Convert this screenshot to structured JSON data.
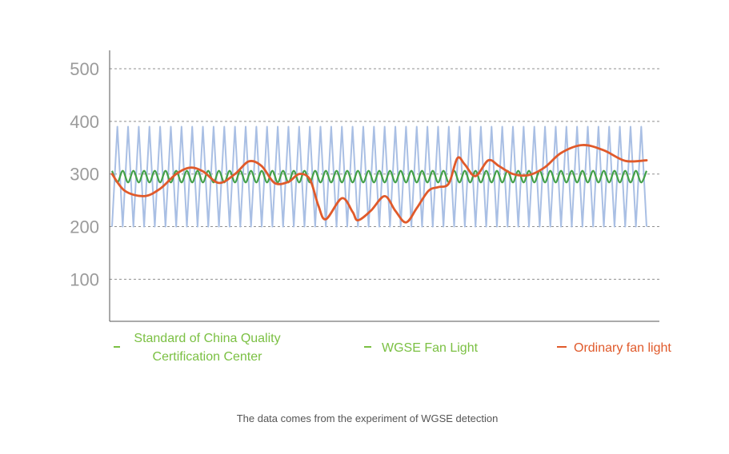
{
  "chart_data": {
    "type": "line",
    "xlabel": "",
    "ylabel": "",
    "ylim": [
      20,
      535
    ],
    "yticks": [
      100,
      200,
      300,
      400,
      500
    ],
    "grid": true,
    "legend_position": "bottom",
    "caption": "The data comes from the experiment of WGSE detection",
    "series": [
      {
        "name": "Standard of China Quality Certification Center",
        "legend_lines": [
          "Standard of China Quality",
          "Certification Center"
        ],
        "color": "#a9bfe4",
        "legend_color": "#7bc043",
        "points": [
          [
            0,
            200
          ],
          [
            0.5,
            390
          ],
          [
            1,
            200
          ],
          [
            1.5,
            390
          ],
          [
            2,
            200
          ],
          [
            2.5,
            390
          ],
          [
            3,
            200
          ],
          [
            3.5,
            390
          ],
          [
            4,
            200
          ],
          [
            4.5,
            390
          ],
          [
            5,
            200
          ],
          [
            5.5,
            390
          ],
          [
            6,
            200
          ],
          [
            6.5,
            390
          ],
          [
            7,
            200
          ],
          [
            7.5,
            390
          ],
          [
            8,
            200
          ],
          [
            8.5,
            390
          ],
          [
            9,
            200
          ],
          [
            9.5,
            390
          ],
          [
            10,
            200
          ],
          [
            10.5,
            390
          ],
          [
            11,
            200
          ],
          [
            11.5,
            390
          ],
          [
            12,
            200
          ],
          [
            12.5,
            390
          ],
          [
            13,
            200
          ],
          [
            13.5,
            390
          ],
          [
            14,
            200
          ],
          [
            14.5,
            390
          ],
          [
            15,
            200
          ],
          [
            15.5,
            390
          ],
          [
            16,
            200
          ],
          [
            16.5,
            390
          ],
          [
            17,
            200
          ],
          [
            17.5,
            390
          ],
          [
            18,
            200
          ],
          [
            18.5,
            390
          ],
          [
            19,
            200
          ],
          [
            19.5,
            390
          ],
          [
            20,
            200
          ],
          [
            20.5,
            390
          ],
          [
            21,
            200
          ],
          [
            21.5,
            390
          ],
          [
            22,
            200
          ],
          [
            22.5,
            390
          ],
          [
            23,
            200
          ],
          [
            23.5,
            390
          ],
          [
            24,
            200
          ],
          [
            24.5,
            390
          ],
          [
            25,
            200
          ],
          [
            25.5,
            390
          ],
          [
            26,
            200
          ],
          [
            26.5,
            390
          ],
          [
            27,
            200
          ],
          [
            27.5,
            390
          ],
          [
            28,
            200
          ],
          [
            28.5,
            390
          ],
          [
            29,
            200
          ],
          [
            29.5,
            390
          ],
          [
            30,
            200
          ],
          [
            30.5,
            390
          ],
          [
            31,
            200
          ],
          [
            31.5,
            390
          ],
          [
            32,
            200
          ],
          [
            32.5,
            390
          ],
          [
            33,
            200
          ],
          [
            33.5,
            390
          ],
          [
            34,
            200
          ],
          [
            34.5,
            390
          ],
          [
            35,
            200
          ],
          [
            35.5,
            390
          ],
          [
            36,
            200
          ],
          [
            36.5,
            390
          ],
          [
            37,
            200
          ],
          [
            37.5,
            390
          ],
          [
            38,
            200
          ],
          [
            38.5,
            390
          ],
          [
            39,
            200
          ],
          [
            39.5,
            390
          ],
          [
            40,
            200
          ],
          [
            40.5,
            390
          ],
          [
            41,
            200
          ],
          [
            41.5,
            390
          ],
          [
            42,
            200
          ],
          [
            42.5,
            390
          ],
          [
            43,
            200
          ],
          [
            43.5,
            390
          ],
          [
            44,
            200
          ],
          [
            44.5,
            390
          ],
          [
            45,
            200
          ],
          [
            45.5,
            390
          ],
          [
            46,
            200
          ],
          [
            46.5,
            390
          ],
          [
            47,
            200
          ],
          [
            47.5,
            390
          ],
          [
            48,
            200
          ],
          [
            48.5,
            390
          ],
          [
            49,
            200
          ],
          [
            49.5,
            390
          ],
          [
            50,
            200
          ]
        ]
      },
      {
        "name": "WGSE Fan Light",
        "color": "#43a047",
        "legend_color": "#7bc043",
        "points": [
          [
            0,
            306
          ],
          [
            0.5,
            284
          ],
          [
            1,
            306
          ],
          [
            1.5,
            284
          ],
          [
            2,
            306
          ],
          [
            2.5,
            284
          ],
          [
            3,
            306
          ],
          [
            3.5,
            284
          ],
          [
            4,
            306
          ],
          [
            4.5,
            284
          ],
          [
            5,
            306
          ],
          [
            5.5,
            284
          ],
          [
            6,
            306
          ],
          [
            6.5,
            284
          ],
          [
            7,
            306
          ],
          [
            7.5,
            284
          ],
          [
            8,
            306
          ],
          [
            8.5,
            284
          ],
          [
            9,
            306
          ],
          [
            9.5,
            284
          ],
          [
            10,
            306
          ],
          [
            10.5,
            284
          ],
          [
            11,
            306
          ],
          [
            11.5,
            284
          ],
          [
            12,
            306
          ],
          [
            12.5,
            284
          ],
          [
            13,
            306
          ],
          [
            13.5,
            284
          ],
          [
            14,
            306
          ],
          [
            14.5,
            284
          ],
          [
            15,
            306
          ],
          [
            15.5,
            284
          ],
          [
            16,
            306
          ],
          [
            16.5,
            284
          ],
          [
            17,
            306
          ],
          [
            17.5,
            284
          ],
          [
            18,
            306
          ],
          [
            18.5,
            284
          ],
          [
            19,
            306
          ],
          [
            19.5,
            284
          ],
          [
            20,
            306
          ],
          [
            20.5,
            284
          ],
          [
            21,
            306
          ],
          [
            21.5,
            284
          ],
          [
            22,
            306
          ],
          [
            22.5,
            284
          ],
          [
            23,
            306
          ],
          [
            23.5,
            284
          ],
          [
            24,
            306
          ],
          [
            24.5,
            284
          ],
          [
            25,
            306
          ],
          [
            25.5,
            284
          ],
          [
            26,
            306
          ],
          [
            26.5,
            284
          ],
          [
            27,
            306
          ],
          [
            27.5,
            284
          ],
          [
            28,
            306
          ],
          [
            28.5,
            284
          ],
          [
            29,
            306
          ],
          [
            29.5,
            284
          ],
          [
            30,
            306
          ],
          [
            30.5,
            284
          ],
          [
            31,
            306
          ],
          [
            31.5,
            284
          ],
          [
            32,
            306
          ],
          [
            32.5,
            284
          ],
          [
            33,
            306
          ],
          [
            33.5,
            284
          ],
          [
            34,
            306
          ],
          [
            34.5,
            284
          ],
          [
            35,
            306
          ],
          [
            35.5,
            284
          ],
          [
            36,
            306
          ],
          [
            36.5,
            284
          ],
          [
            37,
            306
          ],
          [
            37.5,
            284
          ],
          [
            38,
            306
          ],
          [
            38.5,
            284
          ],
          [
            39,
            306
          ],
          [
            39.5,
            284
          ],
          [
            40,
            306
          ],
          [
            40.5,
            284
          ],
          [
            41,
            306
          ],
          [
            41.5,
            284
          ],
          [
            42,
            306
          ],
          [
            42.5,
            284
          ],
          [
            43,
            306
          ],
          [
            43.5,
            284
          ],
          [
            44,
            306
          ],
          [
            44.5,
            284
          ],
          [
            45,
            306
          ],
          [
            45.5,
            284
          ],
          [
            46,
            306
          ],
          [
            46.5,
            284
          ],
          [
            47,
            306
          ],
          [
            47.5,
            284
          ],
          [
            48,
            306
          ],
          [
            48.5,
            284
          ],
          [
            49,
            306
          ],
          [
            49.5,
            284
          ],
          [
            50,
            306
          ]
        ]
      },
      {
        "name": "Ordinary fan light",
        "color": "#e05a2b",
        "legend_color": "#e05a2b",
        "points": [
          [
            0,
            300
          ],
          [
            1.2,
            268
          ],
          [
            3,
            258
          ],
          [
            4.5,
            272
          ],
          [
            6,
            300
          ],
          [
            7.3,
            312
          ],
          [
            8.5,
            305
          ],
          [
            10,
            283
          ],
          [
            11.5,
            300
          ],
          [
            12.8,
            324
          ],
          [
            14,
            315
          ],
          [
            15.2,
            283
          ],
          [
            16.5,
            285
          ],
          [
            17.5,
            300
          ],
          [
            18.5,
            290
          ],
          [
            19.3,
            240
          ],
          [
            20,
            214
          ],
          [
            21.5,
            254
          ],
          [
            22.5,
            228
          ],
          [
            23,
            212
          ],
          [
            24.2,
            230
          ],
          [
            25.5,
            258
          ],
          [
            26.5,
            230
          ],
          [
            27.5,
            208
          ],
          [
            28.5,
            235
          ],
          [
            29.6,
            268
          ],
          [
            30.5,
            275
          ],
          [
            31.5,
            282
          ],
          [
            32.3,
            330
          ],
          [
            33,
            318
          ],
          [
            34,
            296
          ],
          [
            35.2,
            326
          ],
          [
            36.2,
            315
          ],
          [
            37.5,
            300
          ],
          [
            39,
            298
          ],
          [
            40.5,
            313
          ],
          [
            42,
            340
          ],
          [
            44,
            355
          ],
          [
            46,
            345
          ],
          [
            48,
            325
          ],
          [
            50,
            326
          ]
        ]
      }
    ]
  }
}
